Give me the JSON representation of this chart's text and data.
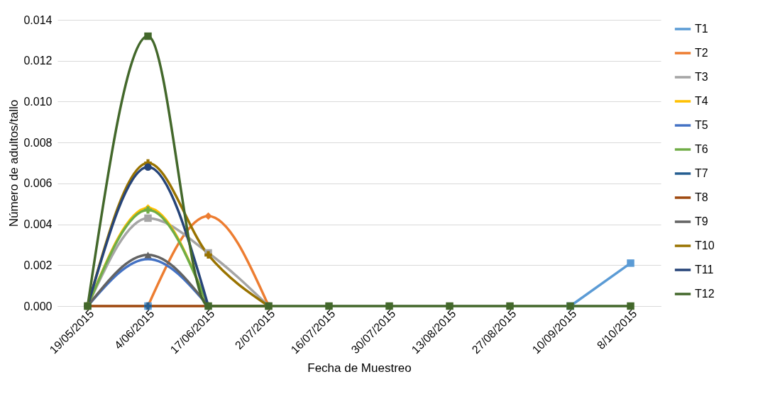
{
  "chart_data": {
    "type": "line",
    "xlabel": "Fecha de Muestreo",
    "ylabel": "Número de adultos/tallo",
    "categories": [
      "19/05/2015",
      "4/06/2015",
      "17/06/2015",
      "2/07/2015",
      "16/07/2015",
      "30/07/2015",
      "13/08/2015",
      "27/08/2015",
      "10/09/2015",
      "8/10/2015"
    ],
    "ylim": [
      0,
      0.014
    ],
    "yticks": [
      {
        "value": 0,
        "label": "0.000"
      },
      {
        "value": 0.002,
        "label": "0.002"
      },
      {
        "value": 0.004,
        "label": "0.004"
      },
      {
        "value": 0.006,
        "label": "0.006"
      },
      {
        "value": 0.008,
        "label": "0.008"
      },
      {
        "value": 0.01,
        "label": "0.010"
      },
      {
        "value": 0.012,
        "label": "0.012"
      },
      {
        "value": 0.014,
        "label": "0.014"
      }
    ],
    "grid": "y",
    "legend": "right",
    "series": [
      {
        "name": "T1",
        "color": "#5b9bd5",
        "marker": "square",
        "values": [
          null,
          0,
          null,
          null,
          null,
          null,
          null,
          null,
          0,
          0.0021
        ]
      },
      {
        "name": "T2",
        "color": "#ed7d31",
        "marker": "diamond",
        "values": [
          null,
          0,
          0.0044,
          0,
          null,
          null,
          null,
          null,
          null,
          null
        ]
      },
      {
        "name": "T3",
        "color": "#a5a5a5",
        "marker": "square",
        "values": [
          0,
          0.0043,
          0.0026,
          0,
          null,
          null,
          null,
          null,
          null,
          null
        ]
      },
      {
        "name": "T4",
        "color": "#ffc000",
        "marker": "diamond",
        "values": [
          0,
          0.0048,
          0,
          null,
          null,
          null,
          null,
          null,
          null,
          null
        ]
      },
      {
        "name": "T5",
        "color": "#4472c4",
        "marker": "none",
        "values": [
          0,
          0.0023,
          0,
          null,
          null,
          null,
          null,
          null,
          null,
          null
        ]
      },
      {
        "name": "T6",
        "color": "#70ad47",
        "marker": "cross",
        "values": [
          0,
          0.0047,
          0,
          null,
          null,
          null,
          null,
          null,
          null,
          null
        ]
      },
      {
        "name": "T7",
        "color": "#255e91",
        "marker": "cross",
        "values": [
          null,
          0,
          null,
          null,
          null,
          null,
          null,
          null,
          null,
          null
        ]
      },
      {
        "name": "T8",
        "color": "#9e480e",
        "marker": "none",
        "values": [
          0,
          0,
          0,
          0,
          null,
          null,
          null,
          null,
          null,
          null
        ]
      },
      {
        "name": "T9",
        "color": "#636363",
        "marker": "triangle",
        "values": [
          0,
          0.0025,
          0,
          null,
          null,
          null,
          null,
          null,
          null,
          null
        ]
      },
      {
        "name": "T10",
        "color": "#997300",
        "marker": "cross",
        "values": [
          0,
          0.007,
          0.0025,
          0,
          null,
          null,
          null,
          null,
          null,
          null
        ]
      },
      {
        "name": "T11",
        "color": "#264478",
        "marker": "circle",
        "values": [
          0,
          0.0068,
          0,
          null,
          null,
          null,
          null,
          null,
          null,
          null
        ]
      },
      {
        "name": "T12",
        "color": "#43682b",
        "marker": "square",
        "values": [
          0,
          0.0132,
          0,
          0,
          0,
          0,
          0,
          0,
          0,
          0
        ]
      }
    ]
  }
}
